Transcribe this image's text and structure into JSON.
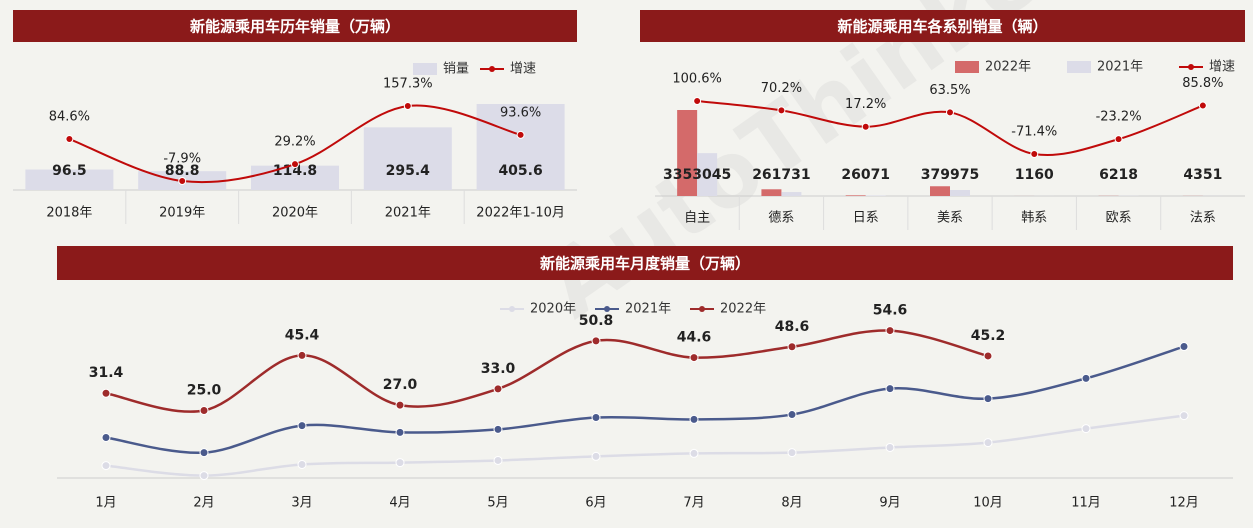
{
  "watermark": "AutoThinker",
  "chart_data": [
    {
      "type": "combo",
      "title": "新能源乘用车历年销量（万辆）",
      "categories": [
        "2018年",
        "2019年",
        "2020年",
        "2021年",
        "2022年1-10月"
      ],
      "series": [
        {
          "name": "销量",
          "type": "bar",
          "color": "#dcdce8",
          "data_labels": true,
          "values": [
            96.5,
            88.8,
            114.8,
            295.4,
            405.6
          ]
        },
        {
          "name": "增速",
          "type": "line",
          "color": "#c00a0a",
          "data_labels": true,
          "values": [
            84.6,
            -7.9,
            29.2,
            157.3,
            93.6
          ],
          "value_labels": [
            "84.6%",
            "-7.9%",
            "29.2%",
            "157.3%",
            "93.6%"
          ]
        }
      ]
    },
    {
      "type": "combo",
      "title": "新能源乘用车各系别销量（辆）",
      "categories": [
        "自主",
        "德系",
        "日系",
        "美系",
        "韩系",
        "欧系",
        "法系"
      ],
      "series": [
        {
          "name": "2022年",
          "type": "bar",
          "color": "#d46a6a",
          "data_labels": true,
          "values": [
            3353045,
            261731,
            26071,
            379975,
            1160,
            6218,
            4351
          ]
        },
        {
          "name": "2021年",
          "type": "bar",
          "color": "#dcdce8",
          "data_labels": false,
          "values": [
            1671500,
            153800,
            22250,
            232400,
            4060,
            8100,
            2340
          ]
        },
        {
          "name": "增速",
          "type": "line",
          "color": "#c00a0a",
          "data_labels": true,
          "values": [
            100.6,
            70.2,
            17.2,
            63.5,
            -71.4,
            -23.2,
            85.8
          ],
          "value_labels": [
            "100.6%",
            "70.2%",
            "17.2%",
            "63.5%",
            "-71.4%",
            "-23.2%",
            "85.8%"
          ]
        }
      ]
    },
    {
      "type": "line",
      "title": "新能源乘用车月度销量（万辆）",
      "categories": [
        "1月",
        "2月",
        "3月",
        "4月",
        "5月",
        "6月",
        "7月",
        "8月",
        "9月",
        "10月",
        "11月",
        "12月"
      ],
      "series": [
        {
          "name": "2020年",
          "color": "#dcdce6",
          "data_labels": false,
          "values": [
            4.6,
            0.9,
            5.0,
            5.7,
            6.5,
            8.0,
            9.1,
            9.4,
            11.3,
            13.1,
            18.3,
            23.1
          ]
        },
        {
          "name": "2021年",
          "color": "#4a5a8c",
          "data_labels": false,
          "values": [
            15.0,
            9.4,
            19.4,
            16.9,
            18.0,
            22.4,
            21.7,
            23.5,
            33.1,
            29.4,
            36.9,
            48.7
          ]
        },
        {
          "name": "2022年",
          "color": "#9e2b2b",
          "data_labels": true,
          "values": [
            31.4,
            25.0,
            45.4,
            27.0,
            33.0,
            50.8,
            44.6,
            48.6,
            54.6,
            45.2,
            null,
            null
          ],
          "value_labels": [
            "31.4",
            "25.0",
            "45.4",
            "27.0",
            "33.0",
            "50.8",
            "44.6",
            "48.6",
            "54.6",
            "45.2",
            null,
            null
          ]
        }
      ]
    }
  ]
}
